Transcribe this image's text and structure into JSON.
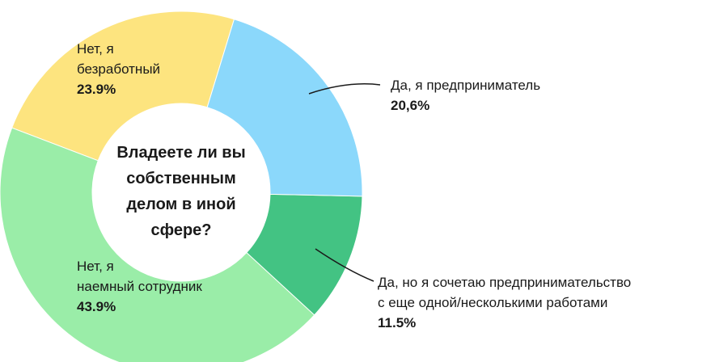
{
  "chart_data": {
    "type": "donut",
    "title": "Владеете ли вы\nсобственным\nделом в иной\nсфере?",
    "categories": [
      "Да, я предприниматель",
      "Да, но я сочетаю предпринимательство\nс еще одной/несколькими работами",
      "Нет, я\nнаемный сотрудник",
      "Нет, я\nбезработный"
    ],
    "values": [
      20.6,
      11.5,
      43.9,
      23.9
    ],
    "value_labels": [
      "20,6%",
      "11.5%",
      "43.9%",
      "23.9%"
    ],
    "colors": [
      "#8bd8fb",
      "#43c383",
      "#9aeda8",
      "#fde47f"
    ]
  }
}
